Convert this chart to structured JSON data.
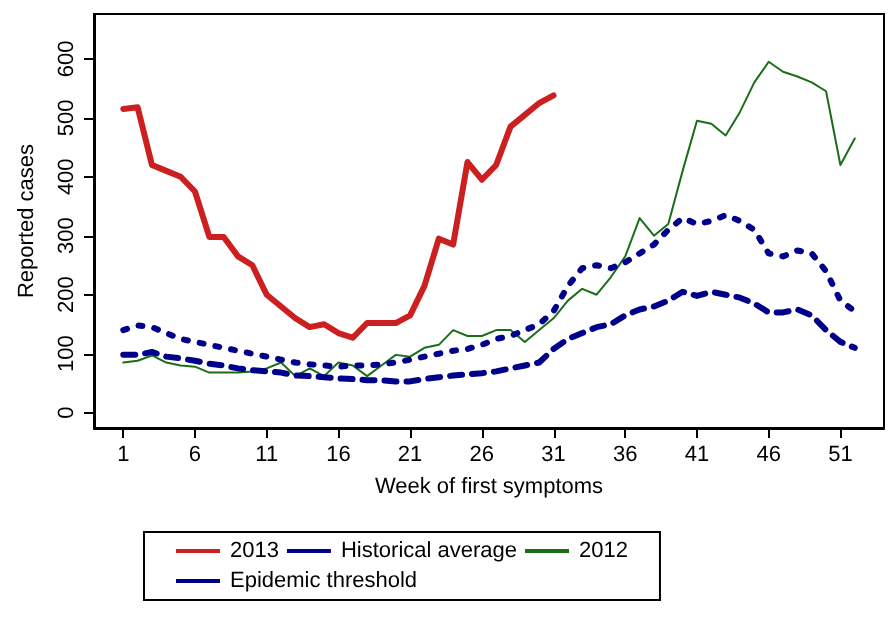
{
  "chart_data": {
    "type": "line",
    "xlabel": "Week of first symptoms",
    "ylabel": "Reported cases",
    "x": [
      1,
      2,
      3,
      4,
      5,
      6,
      7,
      8,
      9,
      10,
      11,
      12,
      13,
      14,
      15,
      16,
      17,
      18,
      19,
      20,
      21,
      22,
      23,
      24,
      25,
      26,
      27,
      28,
      29,
      30,
      31,
      32,
      33,
      34,
      35,
      36,
      37,
      38,
      39,
      40,
      41,
      42,
      43,
      44,
      45,
      46,
      47,
      48,
      49,
      50,
      51,
      52
    ],
    "series": [
      {
        "name": "2013",
        "color": "#cc2020",
        "line_style": "solid",
        "values": [
          515,
          518,
          420,
          410,
          400,
          375,
          298,
          298,
          265,
          250,
          200,
          180,
          160,
          145,
          150,
          135,
          127,
          152,
          152,
          152,
          165,
          215,
          295,
          285,
          425,
          395,
          420,
          485,
          505,
          525,
          538,
          null,
          null,
          null,
          null,
          null,
          null,
          null,
          null,
          null,
          null,
          null,
          null,
          null,
          null,
          null,
          null,
          null,
          null,
          null,
          null,
          null
        ]
      },
      {
        "name": "2012",
        "color": "#1a6e1a",
        "line_style": "solid",
        "values": [
          85,
          88,
          97,
          85,
          80,
          78,
          68,
          68,
          68,
          70,
          75,
          85,
          62,
          75,
          62,
          85,
          80,
          62,
          80,
          98,
          95,
          110,
          115,
          140,
          130,
          130,
          140,
          140,
          120,
          140,
          160,
          190,
          210,
          200,
          230,
          265,
          330,
          300,
          320,
          410,
          495,
          490,
          470,
          510,
          560,
          595,
          578,
          570,
          560,
          545,
          420,
          465
        ]
      },
      {
        "name": "Historical average",
        "color": "#00008b",
        "line_style": "dashed",
        "values": [
          98,
          98,
          103,
          95,
          92,
          88,
          83,
          80,
          75,
          72,
          70,
          68,
          63,
          62,
          60,
          58,
          57,
          55,
          55,
          53,
          53,
          57,
          60,
          63,
          65,
          67,
          70,
          75,
          80,
          85,
          108,
          125,
          135,
          145,
          150,
          165,
          175,
          180,
          190,
          205,
          198,
          205,
          200,
          195,
          185,
          170,
          170,
          175,
          165,
          140,
          120,
          110
        ]
      },
      {
        "name": "Epidemic threshold",
        "color": "#00008b",
        "line_style": "dotted",
        "values": [
          140,
          148,
          145,
          135,
          125,
          120,
          115,
          110,
          105,
          100,
          95,
          90,
          85,
          82,
          80,
          78,
          80,
          80,
          82,
          85,
          90,
          95,
          100,
          105,
          108,
          115,
          125,
          130,
          140,
          150,
          172,
          215,
          245,
          250,
          245,
          255,
          270,
          285,
          310,
          330,
          320,
          325,
          335,
          325,
          310,
          270,
          265,
          275,
          270,
          240,
          190,
          172
        ]
      }
    ],
    "xlim": [
      -1.04,
      54.04
    ],
    "xticks": [
      1,
      6,
      11,
      16,
      21,
      26,
      31,
      36,
      41,
      46,
      51
    ],
    "ylim": [
      -26,
      676
    ],
    "yticks": [
      0,
      100,
      200,
      300,
      400,
      500,
      600
    ],
    "grid": false,
    "legend": "bottom",
    "marker": "none"
  }
}
